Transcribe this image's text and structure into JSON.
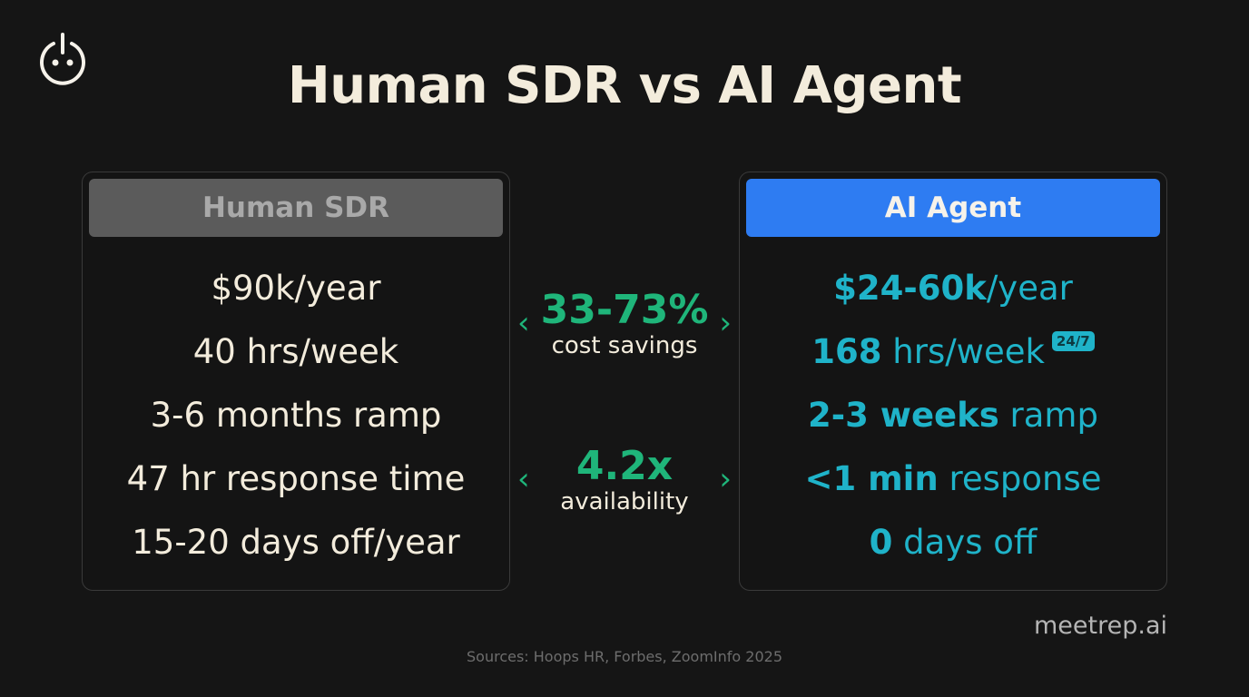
{
  "title": "Human SDR vs AI Agent",
  "logo_icon": "power-face-icon",
  "human": {
    "header": "Human SDR",
    "rows": [
      "$90k/year",
      "40 hrs/week",
      "3-6 months ramp",
      "47 hr response time",
      "15-20 days off/year"
    ]
  },
  "ai": {
    "header": "AI Agent",
    "rows": [
      {
        "bold": "$24-60k",
        "rest": "/year"
      },
      {
        "bold": "168",
        "rest": " hrs/week",
        "badge": "24/7"
      },
      {
        "bold": "2-3 weeks",
        "rest": " ramp"
      },
      {
        "bold": "<1 min",
        "rest": " response"
      },
      {
        "bold": "0",
        "rest": " days off"
      }
    ]
  },
  "stats": [
    {
      "value": "33-73%",
      "label": "cost savings"
    },
    {
      "value": "4.2x",
      "label": "availability"
    }
  ],
  "brand": "meetrep.ai",
  "sources": "Sources: Hoops HR, Forbes, ZoomInfo 2025",
  "colors": {
    "background": "#151515",
    "text": "#f3ecdc",
    "green": "#1fb57a",
    "teal": "#1fb3c9",
    "ai_header": "#2e7cf2",
    "human_header": "#5b5b5b"
  }
}
